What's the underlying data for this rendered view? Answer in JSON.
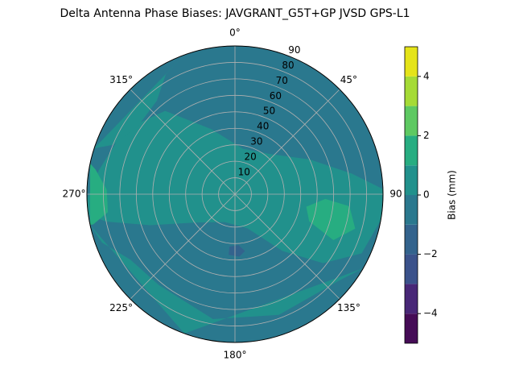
{
  "chart_data": {
    "type": "polar-contour",
    "title": "Delta Antenna Phase Biases: JAVGRANT_G5T+GP JVSD GPS-L1",
    "rlim": [
      0,
      90
    ],
    "rticks": [
      10,
      20,
      30,
      40,
      50,
      60,
      70,
      80,
      90
    ],
    "thetaticks": [
      {
        "value": 0,
        "label": "0°"
      },
      {
        "value": 45,
        "label": "45°"
      },
      {
        "value": 90,
        "label": "90"
      },
      {
        "value": 135,
        "label": "135°"
      },
      {
        "value": 180,
        "label": "180°"
      },
      {
        "value": 225,
        "label": "225°"
      },
      {
        "value": 270,
        "label": "270°"
      },
      {
        "value": 315,
        "label": "315°"
      }
    ],
    "grid": true,
    "colorbar": {
      "label": "Bias (mm)",
      "levels": [
        -5,
        -4,
        -3,
        -2,
        -1,
        0,
        1,
        2,
        3,
        4,
        5
      ],
      "colors": [
        "#450c56",
        "#482777",
        "#3b528b",
        "#33638d",
        "#2a788e",
        "#21918c",
        "#27ad81",
        "#5ec962",
        "#a5db36",
        "#e5e419"
      ],
      "ticks": [
        {
          "value": -4,
          "label": "−4"
        },
        {
          "value": -2,
          "label": "−2"
        },
        {
          "value": 0,
          "label": "0"
        },
        {
          "value": 2,
          "label": "2"
        },
        {
          "value": 4,
          "label": "4"
        }
      ]
    },
    "background_level": -1,
    "contours": [
      {
        "level": 0,
        "points": [
          [
            268,
            90
          ],
          [
            280,
            84
          ],
          [
            300,
            78
          ],
          [
            320,
            66
          ],
          [
            340,
            42
          ],
          [
            10,
            28
          ],
          [
            40,
            32
          ],
          [
            65,
            50
          ],
          [
            80,
            72
          ],
          [
            88,
            90
          ],
          [
            100,
            90
          ],
          [
            115,
            85
          ],
          [
            128,
            68
          ],
          [
            140,
            45
          ],
          [
            160,
            22
          ],
          [
            200,
            18
          ],
          [
            235,
            30
          ],
          [
            250,
            55
          ],
          [
            258,
            80
          ],
          [
            262,
            90
          ]
        ]
      },
      {
        "level": 0,
        "points": [
          [
            120,
            90
          ],
          [
            130,
            82
          ],
          [
            160,
            78
          ],
          [
            190,
            77
          ],
          [
            220,
            72
          ],
          [
            238,
            75
          ],
          [
            250,
            86
          ],
          [
            258,
            90
          ],
          [
            200,
            90
          ]
        ]
      },
      {
        "level": 0,
        "points": [
          [
            288,
            90
          ],
          [
            292,
            80
          ],
          [
            305,
            72
          ],
          [
            320,
            74
          ],
          [
            330,
            84
          ],
          [
            340,
            90
          ]
        ]
      },
      {
        "level": 1,
        "points": [
          [
            93,
            55
          ],
          [
            100,
            44
          ],
          [
            110,
            48
          ],
          [
            115,
            66
          ],
          [
            106,
            76
          ],
          [
            96,
            70
          ]
        ]
      },
      {
        "level": 1,
        "points": [
          [
            258,
            88
          ],
          [
            262,
            78
          ],
          [
            272,
            78
          ],
          [
            280,
            86
          ],
          [
            282,
            90
          ],
          [
            258,
            90
          ]
        ]
      },
      {
        "level": -2,
        "points": [
          [
            170,
            35
          ],
          [
            176,
            31
          ],
          [
            186,
            32
          ],
          [
            186,
            37
          ],
          [
            176,
            38
          ]
        ]
      }
    ]
  }
}
